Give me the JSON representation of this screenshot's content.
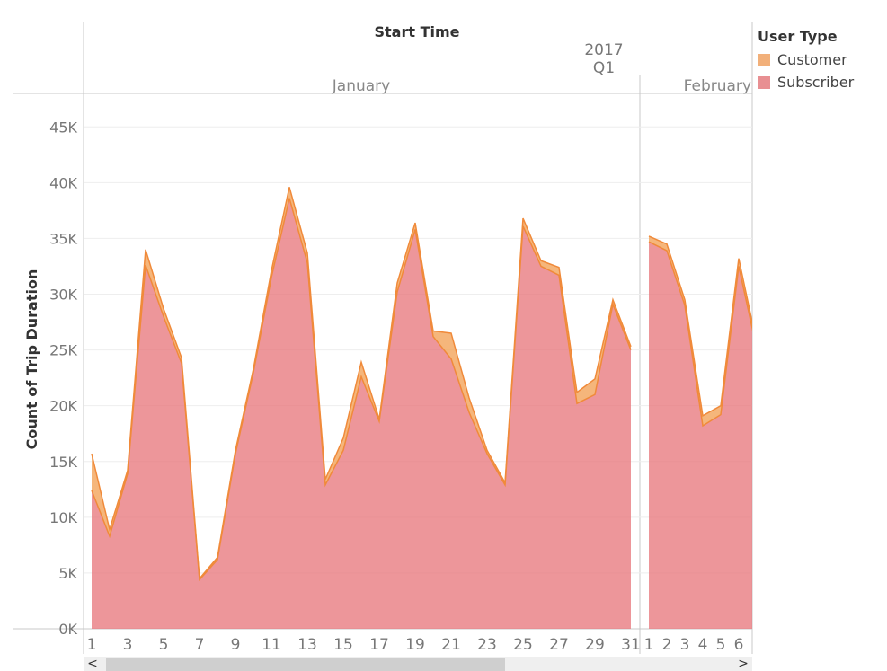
{
  "chart_data": {
    "type": "area",
    "stacked": true,
    "header_title": "Start Time",
    "year_label": "2017",
    "quarter_label": "Q1",
    "ylabel": "Count of Trip Duration",
    "ylim": [
      0,
      48000
    ],
    "yticks": [
      0,
      5000,
      10000,
      15000,
      20000,
      25000,
      30000,
      35000,
      40000,
      45000
    ],
    "ytick_labels": [
      "0K",
      "5K",
      "10K",
      "15K",
      "20K",
      "25K",
      "30K",
      "35K",
      "40K",
      "45K"
    ],
    "grid": true,
    "legend_title": "User Type",
    "legend_position": "top-right",
    "months": [
      {
        "name": "January",
        "days": [
          1,
          2,
          3,
          4,
          5,
          6,
          7,
          8,
          9,
          10,
          11,
          12,
          13,
          14,
          15,
          16,
          17,
          18,
          19,
          20,
          21,
          22,
          23,
          24,
          25,
          26,
          27,
          28,
          29,
          30,
          31
        ],
        "tick_labels": [
          "1",
          "3",
          "5",
          "7",
          "9",
          "11",
          "13",
          "15",
          "17",
          "19",
          "21",
          "23",
          "25",
          "27",
          "29",
          "31"
        ],
        "series": [
          {
            "name": "Subscriber",
            "values": [
              12400,
              8300,
              13900,
              32600,
              28000,
              23800,
              4400,
              6200,
              15700,
              23000,
              31500,
              38600,
              32800,
              12900,
              16000,
              22600,
              18600,
              30200,
              35800,
              26200,
              24200,
              19400,
              15700,
              12900,
              36100,
              32500,
              31700,
              20200,
              21000,
              29100,
              25000
            ]
          },
          {
            "name": "Customer",
            "values": [
              3300,
              600,
              300,
              1400,
              700,
              500,
              100,
              200,
              300,
              300,
              600,
              1000,
              900,
              500,
              1100,
              1300,
              200,
              800,
              600,
              500,
              2300,
              1300,
              300,
              200,
              700,
              500,
              700,
              1000,
              1400,
              400,
              300
            ]
          }
        ]
      },
      {
        "name": "February",
        "days": [
          1,
          2,
          3,
          4,
          5,
          6,
          7
        ],
        "tick_labels": [
          "1",
          "2",
          "3",
          "4",
          "5",
          "6"
        ],
        "series": [
          {
            "name": "Subscriber",
            "values": [
              34700,
              33900,
              29000,
              18200,
              19200,
              32500,
              25100
            ]
          },
          {
            "name": "Customer",
            "values": [
              500,
              600,
              500,
              900,
              800,
              700,
              500
            ]
          }
        ]
      }
    ],
    "colors": {
      "Subscriber": "#e8797e",
      "Customer": "#f2a45a",
      "line": "#f08a3a"
    }
  },
  "legend": {
    "title": "User Type",
    "items": [
      {
        "label": "Customer",
        "color": "#f2b07a"
      },
      {
        "label": "Subscriber",
        "color": "#e88f92"
      }
    ]
  },
  "scrollbar": {
    "left_arrow": "<",
    "right_arrow": ">"
  }
}
